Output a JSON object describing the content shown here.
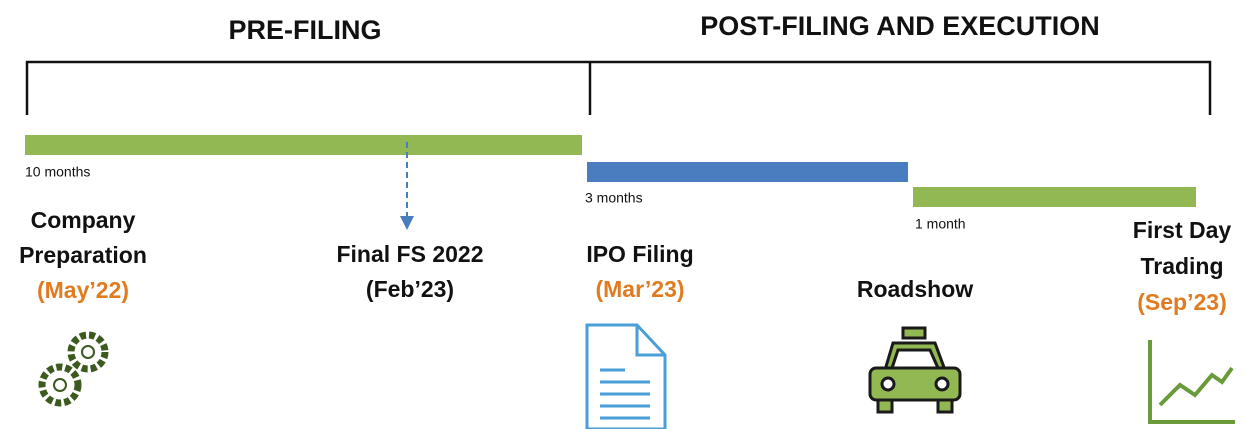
{
  "phases": [
    {
      "label": "PRE-FILING"
    },
    {
      "label": "POST-FILING AND EXECUTION"
    }
  ],
  "durations": [
    "10 months",
    "3 months",
    "1 month"
  ],
  "milestones": [
    {
      "lines": [
        "Company",
        "Preparation"
      ],
      "date": "(May’22)"
    },
    {
      "lines": [
        "Final FS 2022"
      ],
      "date": "(Feb’23)"
    },
    {
      "lines": [
        "IPO Filing"
      ],
      "date": "(Mar’23)"
    },
    {
      "lines": [
        "Roadshow"
      ]
    },
    {
      "lines": [
        "First Day",
        "Trading"
      ],
      "date": "(Sep’23)"
    }
  ]
}
